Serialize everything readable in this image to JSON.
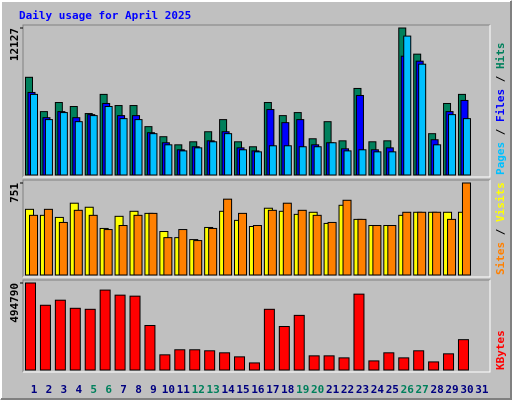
{
  "title": "Daily usage for April 2025",
  "legend_separator": " / ",
  "chart_data": [
    {
      "type": "bar",
      "ylim": [
        0,
        12127
      ],
      "yticks": [
        12127
      ],
      "series": [
        {
          "name": "Hits",
          "color": "#00805c",
          "values": [
            8060,
            5230,
            5980,
            5650,
            5070,
            6650,
            5730,
            5730,
            3990,
            3160,
            2490,
            2740,
            3570,
            4570,
            2740,
            2330,
            5980,
            4900,
            5150,
            2990,
            4400,
            2820,
            7140,
            2740,
            2820,
            12127,
            9970,
            3410,
            5900,
            6650,
            null
          ]
        },
        {
          "name": "Files",
          "color": "#0000ff",
          "values": [
            6810,
            4730,
            5230,
            4730,
            4980,
            5900,
            4900,
            4900,
            3490,
            2660,
            2080,
            2330,
            2820,
            3570,
            2240,
            1990,
            5400,
            4320,
            4570,
            2490,
            2660,
            2160,
            6560,
            2080,
            2240,
            9800,
            9390,
            2910,
            5230,
            6150,
            null
          ]
        },
        {
          "name": "Pages",
          "color": "#00c0ff",
          "values": [
            6650,
            4570,
            5150,
            4400,
            4900,
            5650,
            4650,
            4570,
            3410,
            2490,
            1990,
            2240,
            2740,
            3410,
            2080,
            1910,
            2410,
            2410,
            2330,
            2330,
            2660,
            1990,
            2080,
            1910,
            1910,
            11460,
            9140,
            2490,
            4980,
            4650,
            null
          ]
        }
      ]
    },
    {
      "type": "bar",
      "ylim": [
        0,
        751
      ],
      "yticks": [
        751
      ],
      "series": [
        {
          "name": "Visits",
          "color": "#ffff00",
          "values": [
            536,
            487,
            470,
            586,
            553,
            380,
            479,
            520,
            503,
            355,
            305,
            289,
            388,
            520,
            446,
            396,
            545,
            520,
            495,
            512,
            421,
            569,
            454,
            404,
            404,
            487,
            512,
            512,
            512,
            512,
            null
          ]
        },
        {
          "name": "Sites",
          "color": "#ff8000",
          "values": [
            487,
            536,
            429,
            528,
            487,
            371,
            404,
            487,
            503,
            305,
            371,
            281,
            380,
            619,
            503,
            404,
            528,
            586,
            528,
            487,
            429,
            610,
            454,
            404,
            404,
            512,
            512,
            512,
            454,
            751,
            null
          ]
        }
      ]
    },
    {
      "type": "bar",
      "ylim": [
        0,
        494790
      ],
      "yticks": [
        494790
      ],
      "categories": [
        "1",
        "2",
        "3",
        "4",
        "5",
        "6",
        "7",
        "8",
        "9",
        "10",
        "11",
        "12",
        "13",
        "14",
        "15",
        "16",
        "17",
        "18",
        "19",
        "20",
        "21",
        "22",
        "23",
        "24",
        "25",
        "26",
        "27",
        "28",
        "29",
        "30",
        "31"
      ],
      "category_colors": [
        "#000080",
        "#000080",
        "#000080",
        "#000080",
        "#00805c",
        "#00805c",
        "#000080",
        "#000080",
        "#000080",
        "#000080",
        "#000080",
        "#00805c",
        "#00805c",
        "#000080",
        "#000080",
        "#000080",
        "#000080",
        "#000080",
        "#00805c",
        "#00805c",
        "#000080",
        "#000080",
        "#000080",
        "#000080",
        "#000080",
        "#00805c",
        "#00805c",
        "#000080",
        "#000080",
        "#000080",
        "#000080"
      ],
      "series": [
        {
          "name": "KBytes",
          "color": "#ff0000",
          "values": [
            494790,
            368200,
            396960,
            350930,
            345180,
            454490,
            425720,
            419970,
            253130,
            86300,
            115060,
            115060,
            109310,
            97800,
            74790,
            40270,
            345180,
            247380,
            310660,
            80540,
            80540,
            69040,
            431480,
            51780,
            97800,
            69040,
            109310,
            46020,
            92050,
            172590,
            null
          ]
        }
      ]
    }
  ]
}
